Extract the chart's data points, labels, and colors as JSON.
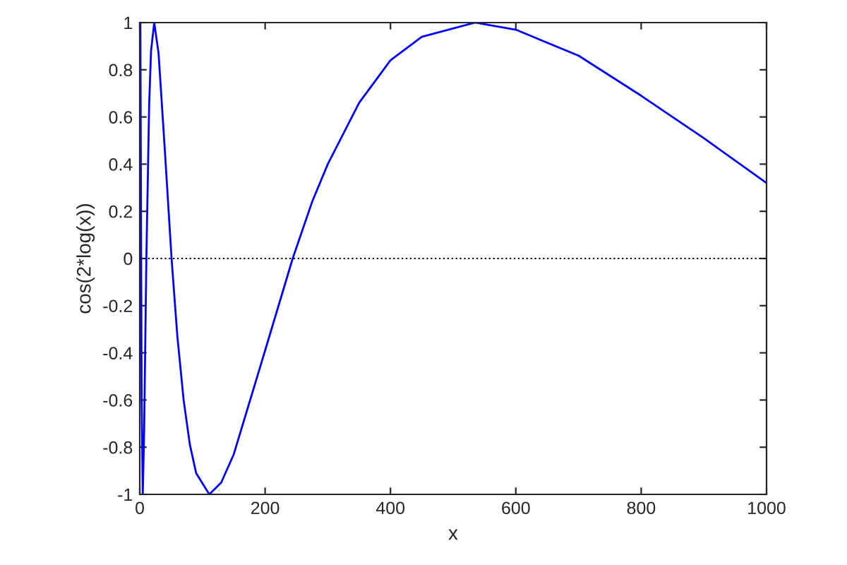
{
  "chart_data": {
    "type": "line",
    "xlabel": "x",
    "ylabel": "cos(2*log(x))",
    "xlim": [
      0,
      1000
    ],
    "ylim": [
      -1,
      1
    ],
    "xticks": [
      0,
      200,
      400,
      600,
      800,
      1000
    ],
    "yticks": [
      -1,
      -0.8,
      -0.6,
      -0.4,
      -0.2,
      0,
      0.2,
      0.4,
      0.6,
      0.8,
      1
    ],
    "grid": false,
    "legend": false,
    "marker": "none",
    "line_style": "solid",
    "ref_lines": [
      {
        "axis": "y",
        "value": 0,
        "color": "#000000",
        "line_style": "dotted"
      }
    ],
    "series": [
      {
        "color": "#0000ff",
        "x": [
          1,
          2.19,
          3,
          4.81,
          7,
          8,
          10.55,
          15,
          18,
          23.1,
          30,
          40,
          50.75,
          60,
          70,
          80,
          90,
          111,
          130,
          150,
          175,
          200,
          244,
          275,
          300,
          350,
          400,
          450,
          535,
          600,
          700,
          800,
          900,
          1000
        ],
        "values": [
          1,
          0,
          -0.59,
          -1,
          -0.73,
          -0.52,
          0,
          0.65,
          0.88,
          1,
          0.87,
          0.46,
          0,
          -0.33,
          -0.6,
          -0.79,
          -0.91,
          -1,
          -0.95,
          -0.83,
          -0.61,
          -0.39,
          0,
          0.24,
          0.4,
          0.66,
          0.84,
          0.94,
          1,
          0.97,
          0.86,
          0.69,
          0.51,
          0.32
        ]
      }
    ]
  }
}
